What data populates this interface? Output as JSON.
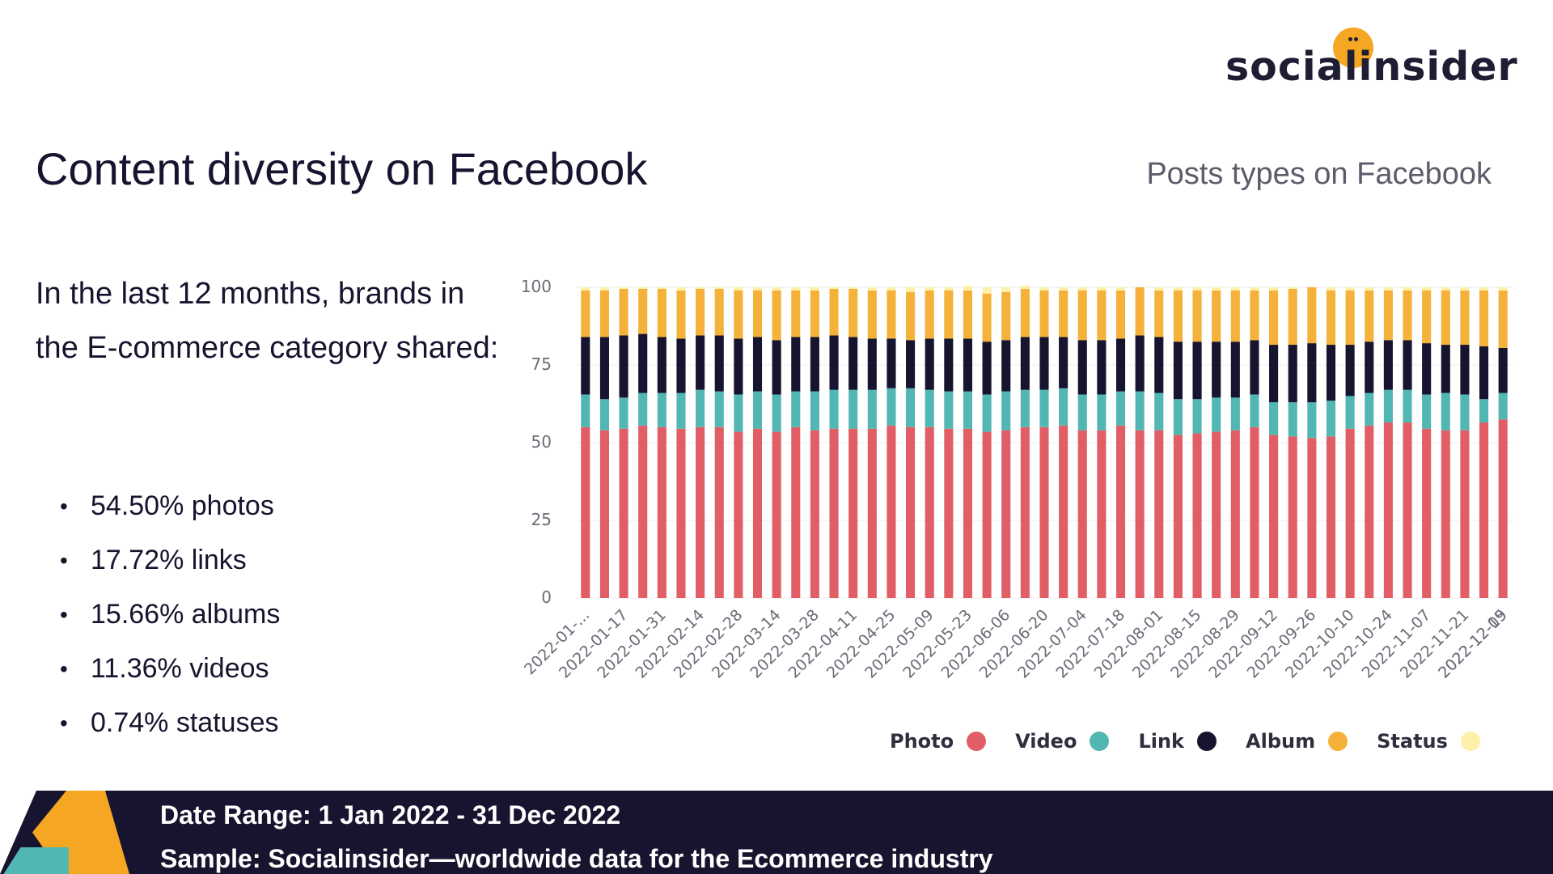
{
  "logo": {
    "text": "socialinsider"
  },
  "header": {
    "title": "Content diversity on Facebook",
    "chart_title": "Posts types on Facebook"
  },
  "summary": {
    "intro": "In the last 12 months, brands in the E-commerce category shared:",
    "bullets": [
      "54.50% photos",
      "17.72% links",
      "15.66% albums",
      "11.36% videos",
      "0.74% statuses"
    ]
  },
  "footer": {
    "date_range": "Date Range: 1 Jan 2022 - 31 Dec 2022",
    "sample": "Sample: Socialinsider—worldwide data for the Ecommerce industry"
  },
  "colors": {
    "photo": "#e15e66",
    "video": "#52b7b3",
    "link": "#17142f",
    "album": "#f5b23a",
    "status": "#fdf0a8"
  },
  "chart_data": {
    "type": "bar",
    "stacked": true,
    "ylim": [
      0,
      100
    ],
    "yticks": [
      0,
      25,
      50,
      75,
      100
    ],
    "xticklabels": [
      "2022-01-...",
      "2022-01-17",
      "2022-01-31",
      "2022-02-14",
      "2022-02-28",
      "2022-03-14",
      "2022-03-28",
      "2022-04-11",
      "2022-04-25",
      "2022-05-09",
      "2022-05-23",
      "2022-06-06",
      "2022-06-20",
      "2022-07-04",
      "2022-07-18",
      "2022-08-01",
      "2022-08-15",
      "2022-08-29",
      "2022-09-12",
      "2022-09-26",
      "2022-10-10",
      "2022-10-24",
      "2022-11-07",
      "2022-11-21",
      "2022-12-05",
      "2022-12-19"
    ],
    "legend": [
      "Photo",
      "Video",
      "Link",
      "Album",
      "Status"
    ],
    "series": [
      {
        "name": "Photo",
        "values": [
          55,
          54,
          54.5,
          55.5,
          55,
          54.5,
          55,
          55,
          53.5,
          54.5,
          53.5,
          55,
          54,
          54.5,
          54.5,
          54.5,
          55.5,
          55,
          55,
          54.5,
          54.5,
          53.5,
          54,
          55,
          55,
          55.5,
          54,
          54,
          55.5,
          54,
          54,
          52.5,
          53,
          53.5,
          54,
          55,
          52.5,
          52,
          51.5,
          52,
          54.5,
          55.5,
          56.5,
          56.5,
          54.5,
          54,
          54,
          56.5,
          57.5
        ]
      },
      {
        "name": "Video",
        "values": [
          10.5,
          10,
          10,
          10.5,
          11,
          11.5,
          12,
          11.5,
          12,
          12,
          12,
          11.5,
          12.5,
          12.5,
          12.5,
          12.5,
          12,
          12.5,
          12,
          12,
          12,
          12,
          12.5,
          12,
          12,
          12,
          11.5,
          11.5,
          11,
          12.5,
          12,
          11.5,
          11,
          11,
          10.5,
          10.5,
          10.5,
          11,
          11.5,
          11.5,
          10.5,
          10.5,
          10.5,
          10.5,
          11,
          12,
          11.5,
          7.5,
          8.5
        ]
      },
      {
        "name": "Link",
        "values": [
          18.5,
          20,
          20,
          19,
          18,
          17.5,
          17.5,
          18,
          18,
          17.5,
          17.5,
          17.5,
          17.5,
          17.5,
          17,
          16.5,
          16,
          15.5,
          16.5,
          17,
          17,
          17,
          16.5,
          17,
          17,
          16.5,
          17.5,
          17.5,
          17,
          18,
          18,
          18.5,
          18.5,
          18,
          18,
          17.5,
          18.5,
          18.5,
          19,
          18,
          16.5,
          16.5,
          16,
          16,
          16.5,
          15.5,
          16,
          17,
          14.5
        ]
      },
      {
        "name": "Album",
        "values": [
          15,
          15,
          15,
          14.5,
          15.5,
          15.5,
          15,
          15,
          15.5,
          15,
          16,
          15,
          15,
          15,
          15.5,
          15.5,
          15.5,
          15.5,
          15.5,
          15.5,
          15.5,
          15.5,
          15.5,
          15.5,
          15,
          15,
          16,
          16,
          15.5,
          15.5,
          15,
          16.5,
          16.5,
          16.5,
          16.5,
          16,
          17.5,
          18,
          18,
          17.5,
          17.5,
          16.5,
          16,
          16,
          17,
          17.5,
          17.5,
          18,
          18.5
        ]
      },
      {
        "name": "Status",
        "values": [
          1,
          1,
          0.5,
          0.5,
          0.5,
          1,
          0.5,
          0.5,
          1,
          1,
          1,
          1,
          1,
          0.5,
          0.5,
          1,
          1,
          1.5,
          1,
          1,
          1.5,
          2,
          1.5,
          1,
          1,
          1,
          1,
          1,
          1,
          0,
          1,
          1,
          1,
          1,
          1,
          1,
          1,
          0.5,
          0,
          1,
          1,
          1,
          1,
          1,
          1,
          1,
          1,
          1,
          1
        ]
      }
    ]
  }
}
